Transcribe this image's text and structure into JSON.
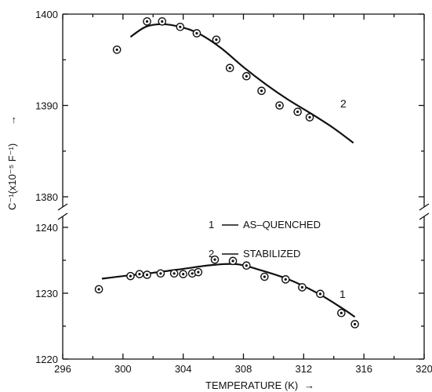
{
  "chart_data": {
    "type": "scatter",
    "title": "",
    "xlabel": "TEMPERATURE (K)",
    "xlabel_arrow": "→",
    "ylabel": "C⁻¹(x10⁻⁵ F⁻¹)",
    "ylabel_arrow": "→",
    "xlim": [
      296,
      320
    ],
    "x_ticks": [
      "296",
      "300",
      "304",
      "308",
      "312",
      "316",
      "320"
    ],
    "y_axis_break": true,
    "y_upper": {
      "range": [
        1380,
        1400
      ],
      "ticks": [
        "1380",
        "1390",
        "1400"
      ]
    },
    "y_lower": {
      "range": [
        1220,
        1240
      ],
      "ticks": [
        "1220",
        "1230",
        "1240"
      ]
    },
    "grid": false,
    "legend": [
      {
        "id": "1",
        "text": "AS–QUENCHED"
      },
      {
        "id": "2",
        "text": "STABILIZED"
      }
    ],
    "series": [
      {
        "name": "AS–QUENCHED",
        "label": "1",
        "points": [
          [
            298.4,
            1230.6
          ],
          [
            300.5,
            1232.6
          ],
          [
            301.1,
            1232.9
          ],
          [
            301.6,
            1232.8
          ],
          [
            302.5,
            1233.0
          ],
          [
            303.4,
            1233.0
          ],
          [
            304.0,
            1232.9
          ],
          [
            304.6,
            1233.0
          ],
          [
            305.0,
            1233.2
          ],
          [
            306.1,
            1235.1
          ],
          [
            307.3,
            1234.9
          ],
          [
            308.2,
            1234.2
          ],
          [
            309.4,
            1232.5
          ],
          [
            310.8,
            1232.1
          ],
          [
            311.9,
            1230.9
          ],
          [
            313.1,
            1229.9
          ],
          [
            314.5,
            1227.0
          ],
          [
            315.4,
            1225.3
          ]
        ],
        "curve": [
          [
            298.6,
            1232.2
          ],
          [
            300.0,
            1232.6
          ],
          [
            302.0,
            1233.1
          ],
          [
            304.0,
            1233.7
          ],
          [
            306.0,
            1234.3
          ],
          [
            307.6,
            1234.4
          ],
          [
            309.0,
            1233.6
          ],
          [
            311.0,
            1232.1
          ],
          [
            313.0,
            1229.9
          ],
          [
            314.5,
            1227.8
          ],
          [
            315.4,
            1226.4
          ]
        ]
      },
      {
        "name": "STABILIZED",
        "label": "2",
        "points": [
          [
            299.6,
            1396.1
          ],
          [
            301.6,
            1399.2
          ],
          [
            302.6,
            1399.2
          ],
          [
            303.8,
            1398.6
          ],
          [
            304.9,
            1397.9
          ],
          [
            306.2,
            1397.2
          ],
          [
            307.1,
            1394.1
          ],
          [
            308.2,
            1393.2
          ],
          [
            309.2,
            1391.6
          ],
          [
            310.4,
            1390.0
          ],
          [
            311.6,
            1389.3
          ],
          [
            312.4,
            1388.7
          ]
        ],
        "curve": [
          [
            300.5,
            1397.5
          ],
          [
            301.5,
            1398.6
          ],
          [
            302.6,
            1398.9
          ],
          [
            303.8,
            1398.6
          ],
          [
            305.0,
            1397.9
          ],
          [
            306.5,
            1396.3
          ],
          [
            308.0,
            1394.2
          ],
          [
            309.5,
            1392.3
          ],
          [
            311.0,
            1390.6
          ],
          [
            312.5,
            1389.1
          ],
          [
            314.0,
            1387.5
          ],
          [
            315.3,
            1385.9
          ]
        ]
      }
    ]
  }
}
